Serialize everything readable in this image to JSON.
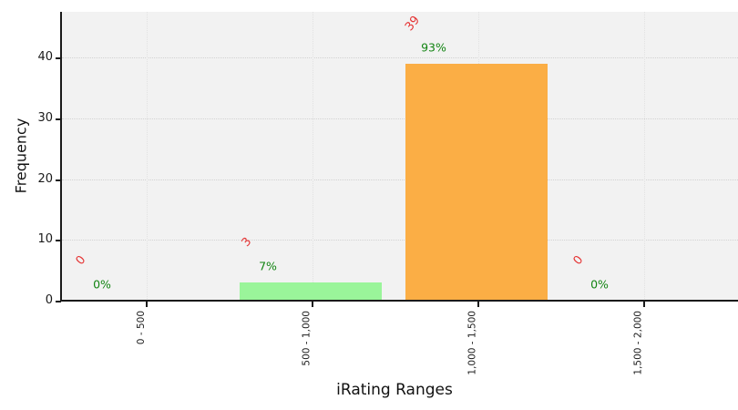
{
  "chart_data": {
    "type": "bar",
    "title": "",
    "xlabel": "iRating Ranges",
    "ylabel": "Frequency",
    "categories": [
      "0 - 500",
      "500 - 1,000",
      "1,000 - 1,500",
      "1,500 - 2,000"
    ],
    "values": [
      0,
      3,
      39,
      0
    ],
    "count_labels": [
      "0",
      "3",
      "39",
      "0"
    ],
    "percent_labels": [
      "0%",
      "7%",
      "93%",
      "0%"
    ],
    "bar_colors": [
      "#9af59a",
      "#9af59a",
      "#fbae45",
      "#9af59a"
    ],
    "yticks": [
      0,
      10,
      20,
      30,
      40
    ],
    "ylim": [
      0,
      47.5
    ],
    "grid": true,
    "legend": "none",
    "plot_bg_color": "#f2f2f2",
    "count_label_color": "#e53333",
    "percent_label_color": "#128412",
    "axis_color": "#1a1a1a"
  }
}
